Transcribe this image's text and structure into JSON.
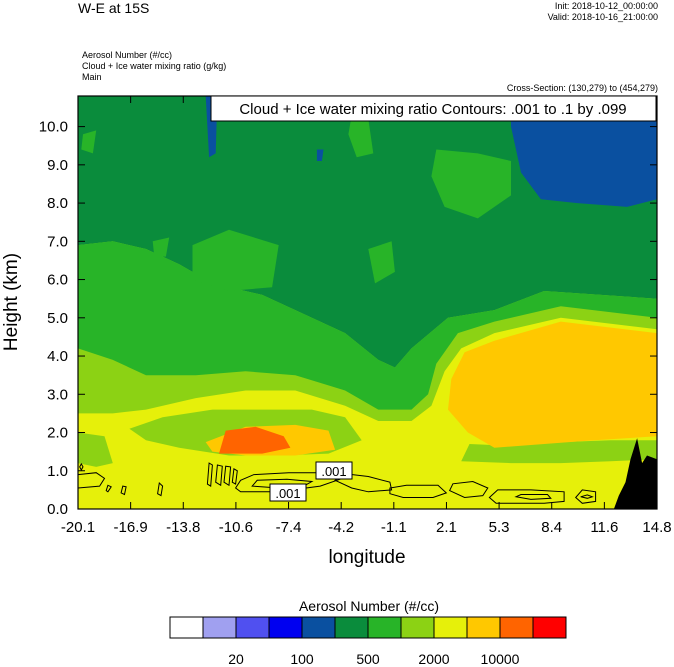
{
  "header": {
    "title": "W-E at 15S",
    "init": "Init: 2018-10-12_00:00:00",
    "valid": "Valid: 2018-10-16_21:00:00",
    "field1": "Aerosol Number   (#/cc)",
    "field2": "Cloud + Ice water mixing ratio   (g/kg)",
    "field3": "Main",
    "cross_section": "Cross-Section: (130,279) to (454,279)"
  },
  "chart_data": {
    "type": "heatmap",
    "title": "W-E at 15S",
    "contour_label": "Cloud + Ice water mixing ratio Contours: .001 to .1 by .099",
    "xlabel": "longitude",
    "ylabel": "Height (km)",
    "xticks": [
      "-20.1",
      "-16.9",
      "-13.8",
      "-10.6",
      "-7.4",
      "-4.2",
      "-1.1",
      "2.1",
      "5.3",
      "8.4",
      "11.6",
      "14.8"
    ],
    "xlim": [
      -20.1,
      14.8
    ],
    "yticks": [
      "0.0",
      "1.0",
      "2.0",
      "3.0",
      "4.0",
      "5.0",
      "6.0",
      "7.0",
      "8.0",
      "9.0",
      "10.0"
    ],
    "ylim": [
      0,
      10.8
    ],
    "contour_levels": [
      ".001"
    ],
    "colorbar": {
      "title": "Aerosol Number  (#/cc)",
      "colors": [
        "#ffffff",
        "#a0a0f0",
        "#5050f0",
        "#0000f0",
        "#0a50a0",
        "#0a8c3c",
        "#28b428",
        "#8cd214",
        "#e6f00a",
        "#ffc800",
        "#ff6400",
        "#ff0000"
      ],
      "labels": [
        "20",
        "100",
        "500",
        "2000",
        "10000"
      ]
    },
    "regions": [
      {
        "color": "#8cd214",
        "pts": [
          [
            -20.1,
            0
          ],
          [
            14.8,
            0
          ],
          [
            14.8,
            10.8
          ],
          [
            -20.1,
            10.8
          ]
        ]
      },
      {
        "color": "#0a8c3c",
        "pts": [
          [
            -20.1,
            10.8
          ],
          [
            14.8,
            10.8
          ],
          [
            14.8,
            5.5
          ],
          [
            8,
            5.7
          ],
          [
            5,
            5.2
          ],
          [
            2.2,
            5.0
          ],
          [
            0,
            4.2
          ],
          [
            -1,
            3.7
          ],
          [
            -2,
            3.9
          ],
          [
            -4,
            4.6
          ],
          [
            -7,
            5.2
          ],
          [
            -9,
            5.6
          ],
          [
            -12,
            5.9
          ],
          [
            -14,
            6.4
          ],
          [
            -16,
            6.8
          ],
          [
            -18,
            7.0
          ],
          [
            -20.1,
            6.9
          ]
        ]
      },
      {
        "color": "#28b428",
        "pts": [
          [
            -20.1,
            6.9
          ],
          [
            -18,
            7.0
          ],
          [
            -16,
            6.8
          ],
          [
            -14,
            6.4
          ],
          [
            -12,
            5.9
          ],
          [
            -9,
            5.6
          ],
          [
            -7,
            5.2
          ],
          [
            -4,
            4.6
          ],
          [
            -2,
            3.9
          ],
          [
            -1,
            3.7
          ],
          [
            0,
            4.2
          ],
          [
            2.2,
            5.0
          ],
          [
            5,
            5.2
          ],
          [
            8,
            5.7
          ],
          [
            14.8,
            5.5
          ],
          [
            14.8,
            5.0
          ],
          [
            9,
            5.3
          ],
          [
            5,
            4.9
          ],
          [
            2.8,
            4.6
          ],
          [
            1.5,
            3.8
          ],
          [
            1.0,
            3.0
          ],
          [
            0,
            2.6
          ],
          [
            -2,
            2.6
          ],
          [
            -4,
            3.1
          ],
          [
            -7,
            3.5
          ],
          [
            -10,
            3.6
          ],
          [
            -13,
            3.5
          ],
          [
            -16,
            3.5
          ],
          [
            -18,
            3.9
          ],
          [
            -20.1,
            4.2
          ]
        ]
      },
      {
        "color": "#28b428",
        "pts": [
          [
            -3.6,
            10.3
          ],
          [
            -2.6,
            10.2
          ],
          [
            -2.3,
            9.3
          ],
          [
            -3.3,
            9.2
          ],
          [
            -3.8,
            9.8
          ]
        ]
      },
      {
        "color": "#28b428",
        "pts": [
          [
            1.5,
            9.4
          ],
          [
            4,
            9.3
          ],
          [
            6,
            9.1
          ],
          [
            6,
            8.2
          ],
          [
            4,
            7.6
          ],
          [
            2,
            7.9
          ],
          [
            1.2,
            8.7
          ]
        ]
      },
      {
        "color": "#28b428",
        "pts": [
          [
            -13.2,
            6.9
          ],
          [
            -11,
            7.3
          ],
          [
            -8,
            6.9
          ],
          [
            -8.4,
            5.8
          ],
          [
            -11,
            5.7
          ],
          [
            -13.2,
            6.0
          ]
        ]
      },
      {
        "color": "#28b428",
        "pts": [
          [
            -2.6,
            6.8
          ],
          [
            -1.2,
            7.0
          ],
          [
            -1,
            6.2
          ],
          [
            -2.2,
            5.9
          ]
        ]
      },
      {
        "color": "#28b428",
        "pts": [
          [
            -19.8,
            9.8
          ],
          [
            -19,
            9.9
          ],
          [
            -19.2,
            9.3
          ],
          [
            -19.9,
            9.4
          ]
        ]
      },
      {
        "color": "#28b428",
        "pts": [
          [
            14,
            9.7
          ],
          [
            14.8,
            9.9
          ],
          [
            14.8,
            8.5
          ],
          [
            14.1,
            8.7
          ]
        ]
      },
      {
        "color": "#28b428",
        "pts": [
          [
            -15.6,
            7.0
          ],
          [
            -14.6,
            7.1
          ],
          [
            -14.8,
            6.6
          ],
          [
            -15.5,
            6.6
          ]
        ]
      },
      {
        "color": "#0a50a0",
        "pts": [
          [
            6,
            10.8
          ],
          [
            14.8,
            10.8
          ],
          [
            14.8,
            8.1
          ],
          [
            13,
            7.9
          ],
          [
            10,
            8.0
          ],
          [
            7.8,
            8.1
          ],
          [
            6.6,
            8.8
          ],
          [
            6,
            10.0
          ]
        ]
      },
      {
        "color": "#0a50a0",
        "pts": [
          [
            -12.4,
            10.8
          ],
          [
            -11.7,
            10.8
          ],
          [
            -11.8,
            9.3
          ],
          [
            -12.2,
            9.2
          ]
        ]
      },
      {
        "color": "#0a50a0",
        "pts": [
          [
            -5.7,
            9.4
          ],
          [
            -5.3,
            9.4
          ],
          [
            -5.4,
            9.1
          ],
          [
            -5.7,
            9.1
          ]
        ]
      },
      {
        "color": "#e6f00a",
        "pts": [
          [
            -20.1,
            0
          ],
          [
            14.8,
            0
          ],
          [
            14.8,
            4.7
          ],
          [
            9,
            5.0
          ],
          [
            5,
            4.6
          ],
          [
            3,
            4.2
          ],
          [
            2,
            3.6
          ],
          [
            1.2,
            2.7
          ],
          [
            0,
            2.3
          ],
          [
            -2,
            2.3
          ],
          [
            -4,
            2.7
          ],
          [
            -7,
            3.1
          ],
          [
            -10,
            3.1
          ],
          [
            -13,
            2.9
          ],
          [
            -16,
            2.6
          ],
          [
            -18,
            2.5
          ],
          [
            -20.1,
            2.5
          ]
        ]
      },
      {
        "color": "#8cd214",
        "pts": [
          [
            -17,
            2.1
          ],
          [
            -15,
            2.4
          ],
          [
            -12,
            2.6
          ],
          [
            -9,
            2.6
          ],
          [
            -6,
            2.6
          ],
          [
            -4,
            2.4
          ],
          [
            -3,
            1.8
          ],
          [
            -5,
            1.45
          ],
          [
            -8,
            1.4
          ],
          [
            -11,
            1.4
          ],
          [
            -14,
            1.6
          ],
          [
            -16,
            1.8
          ]
        ]
      },
      {
        "color": "#8cd214",
        "pts": [
          [
            -20.1,
            2.0
          ],
          [
            -18.5,
            1.9
          ],
          [
            -18,
            1.2
          ],
          [
            -19,
            1.1
          ],
          [
            -20.1,
            1.2
          ]
        ]
      },
      {
        "color": "#8cd214",
        "pts": [
          [
            3,
            1.25
          ],
          [
            6,
            1.2
          ],
          [
            9,
            1.2
          ],
          [
            12,
            1.25
          ],
          [
            14.8,
            1.3
          ],
          [
            14.8,
            1.8
          ],
          [
            12,
            1.8
          ],
          [
            9,
            1.75
          ],
          [
            6,
            1.65
          ],
          [
            3.5,
            1.7
          ]
        ]
      },
      {
        "color": "#ffc800",
        "pts": [
          [
            3.4,
            2.0
          ],
          [
            5,
            1.6
          ],
          [
            8,
            1.7
          ],
          [
            11,
            1.8
          ],
          [
            14.8,
            1.9
          ],
          [
            14.8,
            4.6
          ],
          [
            9,
            4.9
          ],
          [
            5,
            4.4
          ],
          [
            3.2,
            4.1
          ],
          [
            2.4,
            3.4
          ],
          [
            2.2,
            2.6
          ]
        ]
      },
      {
        "color": "#ffc800",
        "pts": [
          [
            -12.4,
            1.75
          ],
          [
            -10,
            2.15
          ],
          [
            -7,
            2.2
          ],
          [
            -5,
            2.05
          ],
          [
            -4.6,
            1.55
          ],
          [
            -7,
            1.4
          ],
          [
            -10,
            1.4
          ],
          [
            -12,
            1.5
          ]
        ]
      },
      {
        "color": "#ff6400",
        "pts": [
          [
            -11.6,
            1.45
          ],
          [
            -11.2,
            2.05
          ],
          [
            -9.4,
            2.15
          ],
          [
            -7.7,
            1.9
          ],
          [
            -7.3,
            1.6
          ],
          [
            -9,
            1.45
          ]
        ]
      },
      {
        "color": "#000000",
        "pts": [
          [
            12.2,
            0
          ],
          [
            14.8,
            0
          ],
          [
            14.8,
            1.3
          ],
          [
            14.2,
            1.4
          ],
          [
            13.9,
            1.2
          ],
          [
            13.6,
            1.85
          ],
          [
            13.2,
            1.3
          ],
          [
            12.9,
            0.7
          ],
          [
            12.5,
            0.35
          ]
        ]
      }
    ],
    "contours": [
      [
        [
          -20.1,
          0.55
        ],
        [
          -18.8,
          0.6
        ],
        [
          -18.5,
          0.8
        ],
        [
          -19,
          0.95
        ],
        [
          -20.1,
          0.9
        ]
      ],
      [
        [
          -20,
          1.1
        ],
        [
          -19.9,
          1.18
        ],
        [
          -19.8,
          1.1
        ],
        [
          -19.9,
          1.02
        ]
      ],
      [
        [
          -18.4,
          0.48
        ],
        [
          -18.3,
          0.62
        ],
        [
          -18.1,
          0.58
        ],
        [
          -18.3,
          0.45
        ]
      ],
      [
        [
          -17.5,
          0.42
        ],
        [
          -17.4,
          0.6
        ],
        [
          -17.2,
          0.58
        ],
        [
          -17.3,
          0.38
        ]
      ],
      [
        [
          -15.3,
          0.4
        ],
        [
          -15.2,
          0.68
        ],
        [
          -15,
          0.6
        ],
        [
          -15.1,
          0.35
        ]
      ],
      [
        [
          -12.3,
          0.65
        ],
        [
          -12.2,
          1.2
        ],
        [
          -12,
          1.15
        ],
        [
          -12.1,
          0.6
        ]
      ],
      [
        [
          -11.8,
          0.7
        ],
        [
          -11.7,
          1.15
        ],
        [
          -11.4,
          1.12
        ],
        [
          -11.5,
          0.62
        ]
      ],
      [
        [
          -11.3,
          0.7
        ],
        [
          -11.2,
          1.12
        ],
        [
          -10.9,
          1.1
        ],
        [
          -11.0,
          0.62
        ]
      ],
      [
        [
          -10.8,
          0.7
        ],
        [
          -10.7,
          1.05
        ],
        [
          -10.5,
          1.0
        ],
        [
          -10.6,
          0.65
        ]
      ],
      [
        [
          -10.6,
          0.55
        ],
        [
          -10.3,
          0.45
        ],
        [
          -8.5,
          0.45
        ],
        [
          -7.2,
          0.5
        ],
        [
          -5.5,
          0.6
        ],
        [
          -4.3,
          0.78
        ],
        [
          -4.0,
          0.9
        ],
        [
          -5.5,
          0.95
        ],
        [
          -7.4,
          0.95
        ],
        [
          -9.5,
          0.9
        ],
        [
          -10.3,
          0.75
        ]
      ],
      [
        [
          -9.6,
          0.6
        ],
        [
          -8,
          0.55
        ],
        [
          -6.5,
          0.6
        ],
        [
          -6.0,
          0.72
        ],
        [
          -7.5,
          0.78
        ],
        [
          -9.3,
          0.75
        ]
      ],
      [
        [
          -4.6,
          0.75
        ],
        [
          -3.6,
          0.55
        ],
        [
          -2.6,
          0.45
        ],
        [
          -1.2,
          0.5
        ],
        [
          -1.3,
          0.7
        ],
        [
          -2.6,
          0.85
        ],
        [
          -4,
          0.92
        ]
      ],
      [
        [
          -1.3,
          0.4
        ],
        [
          -0.5,
          0.3
        ],
        [
          1.3,
          0.3
        ],
        [
          2.1,
          0.42
        ],
        [
          1.6,
          0.62
        ],
        [
          -0.3,
          0.62
        ],
        [
          -1.3,
          0.55
        ]
      ],
      [
        [
          2.3,
          0.48
        ],
        [
          3.2,
          0.3
        ],
        [
          4.3,
          0.35
        ],
        [
          4.6,
          0.55
        ],
        [
          3.7,
          0.72
        ],
        [
          2.5,
          0.66
        ]
      ],
      [
        [
          4.7,
          0.3
        ],
        [
          5.1,
          0.15
        ],
        [
          8.0,
          0.15
        ],
        [
          9.2,
          0.2
        ],
        [
          9.2,
          0.45
        ],
        [
          7.2,
          0.5
        ],
        [
          5.2,
          0.5
        ]
      ],
      [
        [
          6.3,
          0.32
        ],
        [
          7.2,
          0.25
        ],
        [
          8.4,
          0.28
        ],
        [
          8.2,
          0.38
        ],
        [
          6.6,
          0.38
        ]
      ],
      [
        [
          9.9,
          0.3
        ],
        [
          10.3,
          0.15
        ],
        [
          11.1,
          0.2
        ],
        [
          11.1,
          0.45
        ],
        [
          10.3,
          0.5
        ]
      ],
      [
        [
          10.2,
          0.32
        ],
        [
          10.6,
          0.28
        ],
        [
          10.9,
          0.32
        ],
        [
          10.6,
          0.37
        ]
      ]
    ]
  }
}
